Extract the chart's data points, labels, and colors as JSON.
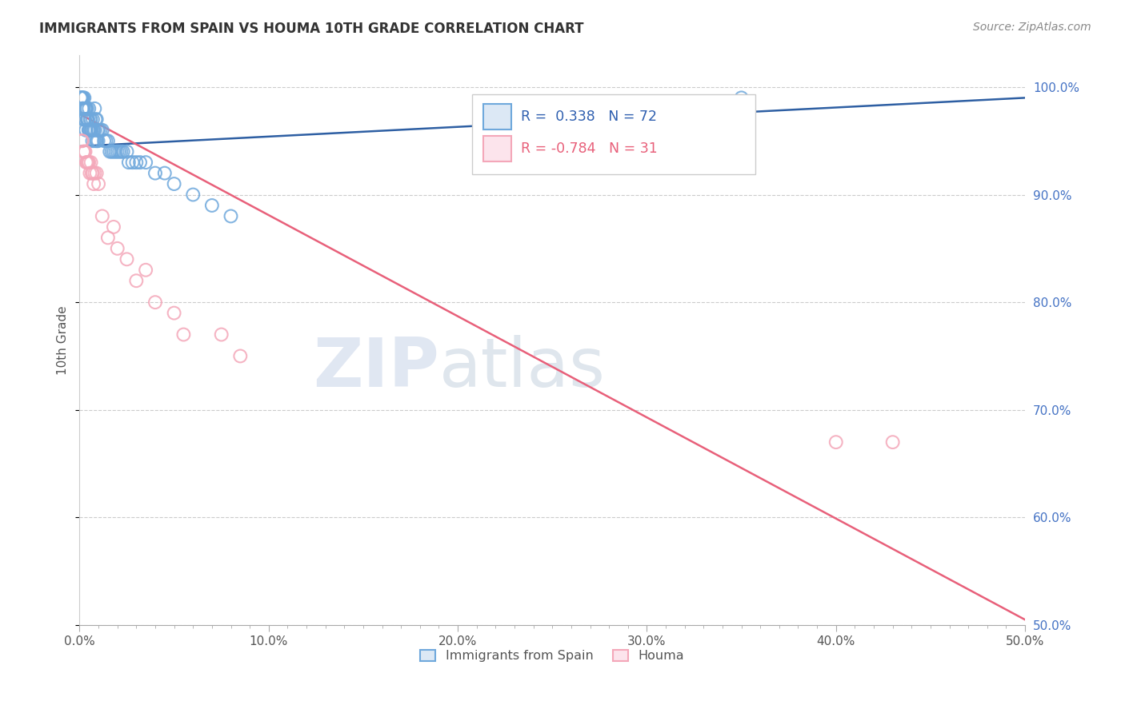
{
  "title": "IMMIGRANTS FROM SPAIN VS HOUMA 10TH GRADE CORRELATION CHART",
  "source": "Source: ZipAtlas.com",
  "ylabel": "10th Grade",
  "x_tick_labels": [
    "0.0%",
    "",
    "",
    "",
    "",
    "",
    "",
    "",
    "",
    "",
    "10.0%",
    "",
    "",
    "",
    "",
    "",
    "",
    "",
    "",
    "",
    "20.0%",
    "",
    "",
    "",
    "",
    "",
    "",
    "",
    "",
    "",
    "30.0%",
    "",
    "",
    "",
    "",
    "",
    "",
    "",
    "",
    "",
    "40.0%",
    "",
    "",
    "",
    "",
    "",
    "",
    "",
    "",
    "",
    "50.0%"
  ],
  "x_tick_values": [
    0,
    1,
    2,
    3,
    4,
    5,
    6,
    7,
    8,
    9,
    10,
    11,
    12,
    13,
    14,
    15,
    16,
    17,
    18,
    19,
    20,
    21,
    22,
    23,
    24,
    25,
    26,
    27,
    28,
    29,
    30,
    31,
    32,
    33,
    34,
    35,
    36,
    37,
    38,
    39,
    40,
    41,
    42,
    43,
    44,
    45,
    46,
    47,
    48,
    49,
    50
  ],
  "y_tick_labels": [
    "100.0%",
    "90.0%",
    "80.0%",
    "70.0%",
    "60.0%",
    "50.0%"
  ],
  "y_tick_values": [
    100,
    90,
    80,
    70,
    60,
    50
  ],
  "xlim": [
    0,
    50
  ],
  "ylim": [
    50,
    103
  ],
  "blue_r": "0.338",
  "blue_n": "72",
  "pink_r": "-0.784",
  "pink_n": "31",
  "blue_color": "#6fa8dc",
  "pink_color": "#f4a7b9",
  "blue_line_color": "#2e5fa3",
  "pink_line_color": "#e8607a",
  "legend_label_blue": "Immigrants from Spain",
  "legend_label_pink": "Houma",
  "watermark_zip": "ZIP",
  "watermark_atlas": "atlas",
  "blue_dots_x": [
    0.1,
    0.2,
    0.3,
    0.4,
    0.5,
    0.6,
    0.7,
    0.8,
    0.9,
    1.0,
    0.15,
    0.25,
    0.35,
    0.45,
    0.55,
    0.65,
    0.75,
    0.85,
    0.95,
    1.1,
    0.12,
    0.22,
    0.32,
    0.42,
    0.52,
    0.62,
    0.72,
    0.82,
    0.92,
    1.2,
    0.18,
    0.28,
    0.38,
    0.48,
    0.58,
    0.68,
    0.78,
    0.88,
    0.98,
    1.3,
    1.5,
    1.7,
    1.9,
    2.1,
    2.3,
    2.5,
    2.8,
    3.2,
    4.0,
    5.0,
    6.0,
    7.0,
    8.0,
    3.5,
    4.5,
    1.4,
    1.6,
    1.8,
    2.0,
    2.2,
    2.6,
    3.0,
    0.05,
    0.08,
    0.14,
    0.17,
    0.21,
    0.27,
    0.33,
    0.5,
    0.4,
    35.0
  ],
  "blue_dots_y": [
    99,
    99,
    98,
    98,
    98,
    97,
    97,
    98,
    97,
    96,
    99,
    99,
    98,
    97,
    97,
    96,
    96,
    97,
    96,
    96,
    99,
    98,
    98,
    97,
    96,
    96,
    96,
    96,
    95,
    96,
    98,
    97,
    97,
    96,
    96,
    95,
    95,
    95,
    95,
    95,
    95,
    94,
    94,
    94,
    94,
    94,
    93,
    93,
    92,
    91,
    90,
    89,
    88,
    93,
    92,
    95,
    94,
    94,
    94,
    94,
    93,
    93,
    99,
    99,
    98,
    98,
    97,
    97,
    96,
    96,
    97,
    99
  ],
  "pink_dots_x": [
    0.1,
    0.2,
    0.3,
    0.4,
    0.5,
    0.6,
    0.7,
    0.8,
    0.9,
    1.0,
    0.15,
    0.25,
    0.35,
    0.45,
    0.55,
    0.65,
    0.75,
    1.5,
    2.0,
    2.5,
    3.0,
    4.0,
    5.5,
    7.5,
    8.5,
    1.2,
    1.8,
    3.5,
    5.0,
    40.0,
    43.0
  ],
  "pink_dots_y": [
    95,
    94,
    94,
    93,
    93,
    93,
    92,
    92,
    92,
    91,
    95,
    94,
    93,
    93,
    92,
    92,
    91,
    86,
    85,
    84,
    82,
    80,
    77,
    77,
    75,
    88,
    87,
    83,
    79,
    67,
    67
  ],
  "blue_trend_x": [
    0,
    50
  ],
  "blue_trend_y": [
    94.5,
    99.0
  ],
  "pink_trend_x": [
    0,
    50
  ],
  "pink_trend_y": [
    97.5,
    50.5
  ]
}
